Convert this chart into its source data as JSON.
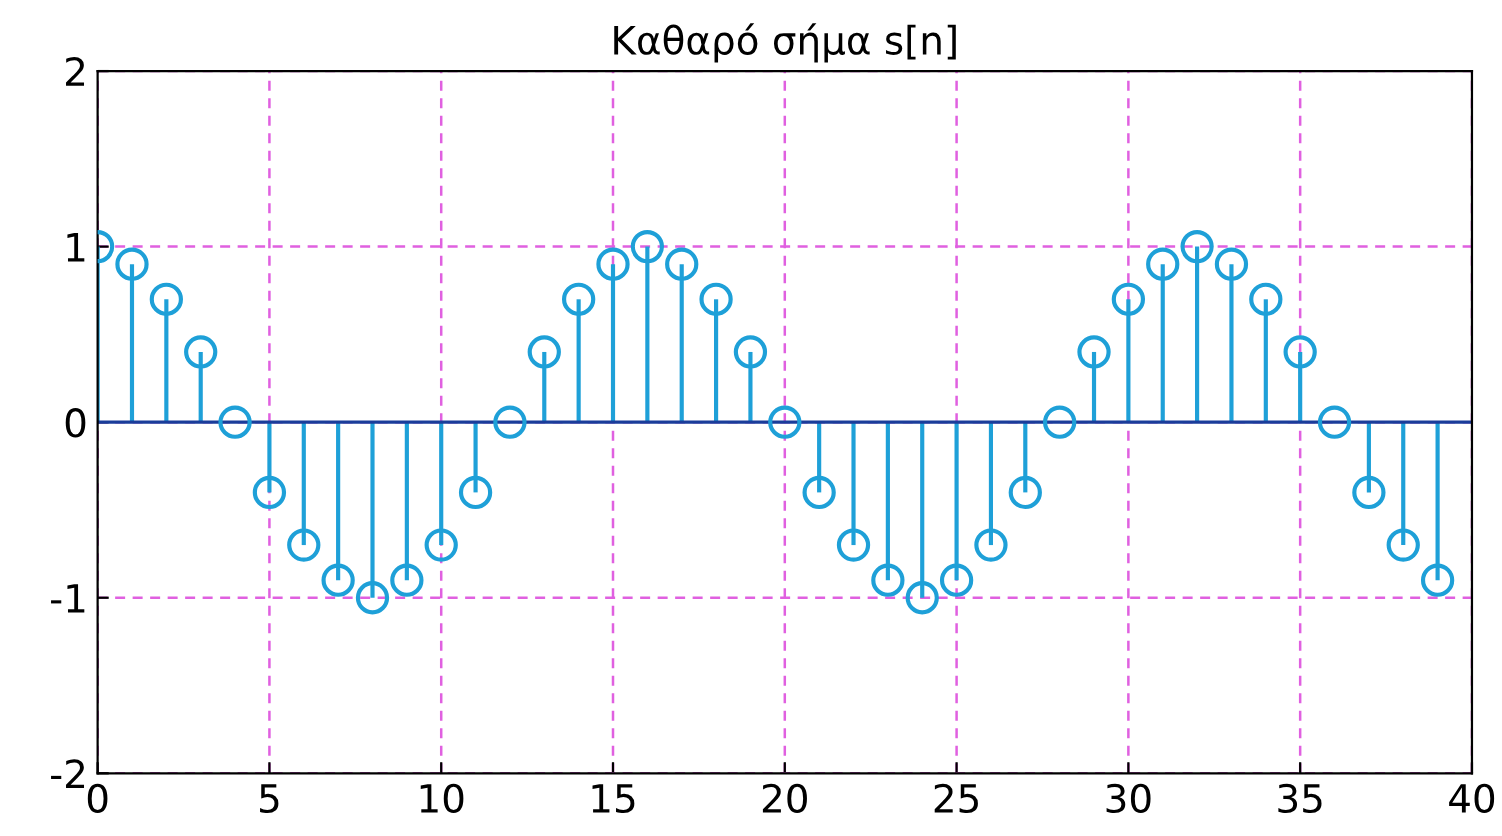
{
  "chart_data": {
    "type": "lollipop",
    "title": "Καθαρό σήμα s[n]",
    "x": [
      0,
      1,
      2,
      3,
      4,
      5,
      6,
      7,
      8,
      9,
      10,
      11,
      12,
      13,
      14,
      15,
      16,
      17,
      18,
      19,
      20,
      21,
      22,
      23,
      24,
      25,
      26,
      27,
      28,
      29,
      30,
      31,
      32,
      33,
      34,
      35,
      36,
      37,
      38,
      39
    ],
    "series": [
      {
        "color": "#1ea0d8",
        "values": [
          1,
          0.9,
          0.7,
          0.4,
          0,
          -0.4,
          -0.7,
          -0.9,
          -1,
          -0.9,
          -0.7,
          -0.4,
          0,
          0.4,
          0.7,
          0.9,
          1,
          0.9,
          0.7,
          0.4,
          0,
          -0.4,
          -0.7,
          -0.9,
          -1,
          -0.9,
          -0.7,
          -0.4,
          0,
          0.4,
          0.7,
          0.9,
          1,
          0.9,
          0.7,
          0.4,
          0,
          -0.4,
          -0.7,
          -0.9
        ]
      }
    ],
    "xlim": [
      0,
      40
    ],
    "xticks": [
      0,
      5,
      10,
      15,
      20,
      25,
      30,
      35,
      40
    ],
    "ylim": [
      -2,
      2
    ],
    "yticks": [
      -2,
      -1,
      0,
      1,
      2
    ],
    "grid": true,
    "marker": "circle",
    "ref_lines": [
      {
        "axis": "y",
        "value": 0,
        "color": "#1a3d9a"
      }
    ]
  }
}
